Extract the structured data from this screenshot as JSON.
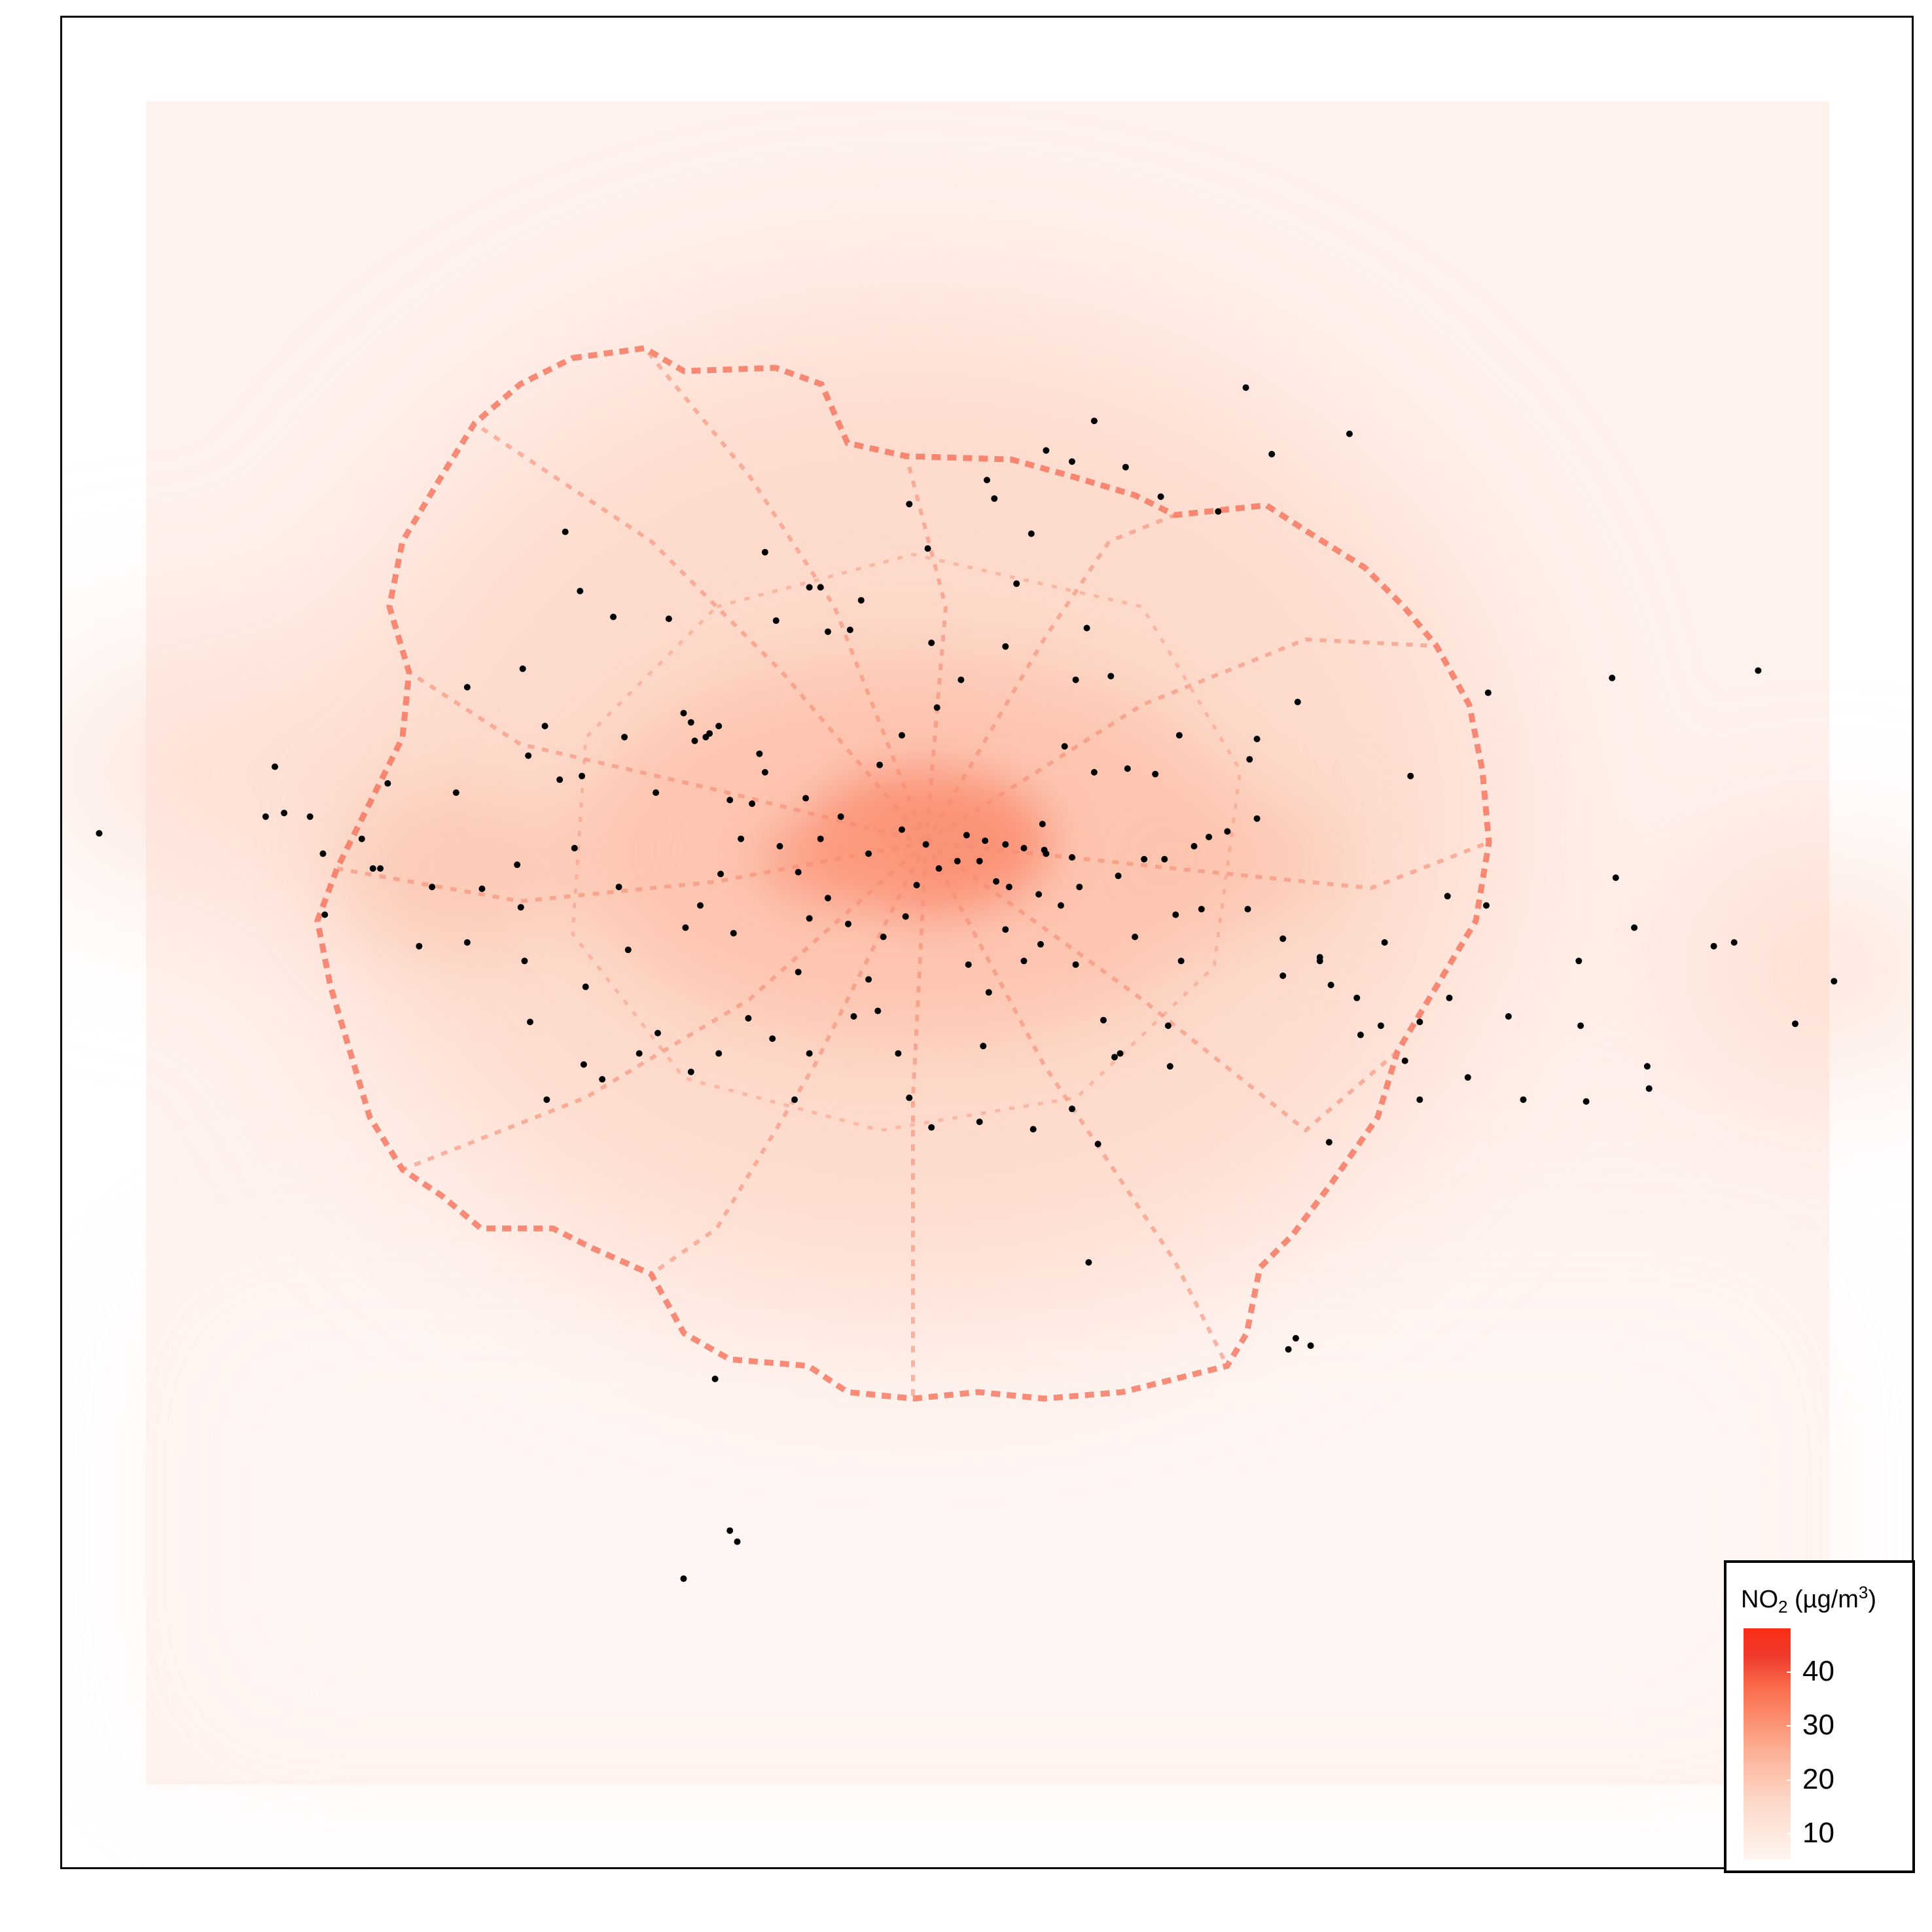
{
  "map": {
    "type": "heatmap",
    "subject": "NO2 concentration surface with monitoring sites",
    "colors": {
      "low": "#fff5f0",
      "mid": "#fca98d",
      "high": "#fb2d16",
      "road": "#f46a52",
      "site": "#000000"
    }
  },
  "legend": {
    "title_main": "NO",
    "title_sub": "2",
    "title_unit": " (µg/m",
    "title_sup": "3",
    "title_end": ")",
    "ticks": [
      {
        "label": "40",
        "value": 40
      },
      {
        "label": "30",
        "value": 30
      },
      {
        "label": "20",
        "value": 20
      },
      {
        "label": "10",
        "value": 10
      }
    ],
    "range": [
      5,
      48
    ],
    "placement": "bottom-right"
  },
  "chart_data": {
    "type": "heatmap",
    "title": "",
    "xlabel": "",
    "ylabel": "",
    "legend_title": "NO2 (µg/m3)",
    "color_scale_range": [
      5,
      48
    ],
    "color_ticks": [
      10,
      20,
      30,
      40
    ],
    "grid": false,
    "legend_placement": "bottom-right",
    "monitoring_sites": [
      [
        0.02,
        0.441
      ],
      [
        0.162,
        0.444
      ],
      [
        0.213,
        0.419
      ],
      [
        0.269,
        0.412
      ],
      [
        0.281,
        0.41
      ],
      [
        0.277,
        0.449
      ],
      [
        0.219,
        0.5
      ],
      [
        0.246,
        0.458
      ],
      [
        0.248,
        0.481
      ],
      [
        0.283,
        0.524
      ],
      [
        0.301,
        0.47
      ],
      [
        0.306,
        0.504
      ],
      [
        0.322,
        0.549
      ],
      [
        0.337,
        0.492
      ],
      [
        0.356,
        0.463
      ],
      [
        0.363,
        0.495
      ],
      [
        0.367,
        0.444
      ],
      [
        0.388,
        0.448
      ],
      [
        0.398,
        0.462
      ],
      [
        0.404,
        0.487
      ],
      [
        0.414,
        0.476
      ],
      [
        0.41,
        0.444
      ],
      [
        0.421,
        0.432
      ],
      [
        0.436,
        0.452
      ],
      [
        0.454,
        0.439
      ],
      [
        0.467,
        0.447
      ],
      [
        0.474,
        0.46
      ],
      [
        0.489,
        0.442
      ],
      [
        0.499,
        0.445
      ],
      [
        0.51,
        0.447
      ],
      [
        0.52,
        0.449
      ],
      [
        0.532,
        0.452
      ],
      [
        0.546,
        0.454
      ],
      [
        0.571,
        0.464
      ],
      [
        0.596,
        0.455
      ],
      [
        0.605,
        0.51
      ],
      [
        0.616,
        0.482
      ],
      [
        0.641,
        0.482
      ],
      [
        0.66,
        0.498
      ],
      [
        0.68,
        0.508
      ],
      [
        0.7,
        0.53
      ],
      [
        0.713,
        0.545
      ],
      [
        0.726,
        0.564
      ],
      [
        0.734,
        0.543
      ],
      [
        0.729,
        0.41
      ],
      [
        0.749,
        0.475
      ],
      [
        0.771,
        0.365
      ],
      [
        0.838,
        0.357
      ],
      [
        0.782,
        0.54
      ],
      [
        0.821,
        0.545
      ],
      [
        0.857,
        0.567
      ],
      [
        0.893,
        0.502
      ],
      [
        0.76,
        0.573
      ],
      [
        0.668,
        0.37
      ],
      [
        0.646,
        0.433
      ],
      [
        0.642,
        0.401
      ],
      [
        0.62,
        0.443
      ],
      [
        0.591,
        0.409
      ],
      [
        0.576,
        0.406
      ],
      [
        0.554,
        0.33
      ],
      [
        0.548,
        0.358
      ],
      [
        0.531,
        0.45
      ],
      [
        0.516,
        0.306
      ],
      [
        0.51,
        0.34
      ],
      [
        0.486,
        0.358
      ],
      [
        0.473,
        0.373
      ],
      [
        0.47,
        0.338
      ],
      [
        0.454,
        0.388
      ],
      [
        0.442,
        0.404
      ],
      [
        0.432,
        0.315
      ],
      [
        0.426,
        0.331
      ],
      [
        0.414,
        0.332
      ],
      [
        0.404,
        0.308
      ],
      [
        0.386,
        0.326
      ],
      [
        0.377,
        0.398
      ],
      [
        0.373,
        0.425
      ],
      [
        0.361,
        0.423
      ],
      [
        0.345,
        0.48
      ],
      [
        0.342,
        0.391
      ],
      [
        0.348,
        0.389
      ],
      [
        0.336,
        0.376
      ],
      [
        0.321,
        0.419
      ],
      [
        0.304,
        0.389
      ],
      [
        0.261,
        0.383
      ],
      [
        0.249,
        0.352
      ],
      [
        0.252,
        0.399
      ],
      [
        0.28,
        0.31
      ],
      [
        0.298,
        0.324
      ],
      [
        0.34,
        0.381
      ],
      [
        0.355,
        0.383
      ],
      [
        0.38,
        0.408
      ],
      [
        0.402,
        0.422
      ],
      [
        0.425,
        0.49
      ],
      [
        0.436,
        0.52
      ],
      [
        0.441,
        0.537
      ],
      [
        0.452,
        0.56
      ],
      [
        0.458,
        0.584
      ],
      [
        0.49,
        0.512
      ],
      [
        0.501,
        0.527
      ],
      [
        0.52,
        0.51
      ],
      [
        0.529,
        0.501
      ],
      [
        0.548,
        0.512
      ],
      [
        0.563,
        0.542
      ],
      [
        0.569,
        0.562
      ],
      [
        0.572,
        0.56
      ],
      [
        0.58,
        0.497
      ],
      [
        0.602,
        0.485
      ],
      [
        0.598,
        0.545
      ],
      [
        0.51,
        0.493
      ],
      [
        0.505,
        0.467
      ],
      [
        0.496,
        0.456
      ],
      [
        0.484,
        0.456
      ],
      [
        0.462,
        0.469
      ],
      [
        0.456,
        0.486
      ],
      [
        0.444,
        0.497
      ],
      [
        0.428,
        0.54
      ],
      [
        0.404,
        0.56
      ],
      [
        0.396,
        0.585
      ],
      [
        0.384,
        0.552
      ],
      [
        0.371,
        0.541
      ],
      [
        0.355,
        0.56
      ],
      [
        0.34,
        0.57
      ],
      [
        0.312,
        0.56
      ],
      [
        0.292,
        0.574
      ],
      [
        0.282,
        0.566
      ],
      [
        0.262,
        0.585
      ],
      [
        0.253,
        0.543
      ],
      [
        0.25,
        0.51
      ],
      [
        0.227,
        0.471
      ],
      [
        0.2,
        0.47
      ],
      [
        0.193,
        0.502
      ],
      [
        0.168,
        0.46
      ],
      [
        0.172,
        0.46
      ],
      [
        0.11,
        0.432
      ],
      [
        0.12,
        0.43
      ],
      [
        0.134,
        0.432
      ],
      [
        0.141,
        0.452
      ],
      [
        0.115,
        0.405
      ],
      [
        0.142,
        0.485
      ],
      [
        0.176,
        0.414
      ],
      [
        0.219,
        0.362
      ],
      [
        0.272,
        0.278
      ],
      [
        0.328,
        0.325
      ],
      [
        0.35,
        0.387
      ],
      [
        0.38,
        0.289
      ],
      [
        0.41,
        0.308
      ],
      [
        0.458,
        0.263
      ],
      [
        0.468,
        0.287
      ],
      [
        0.5,
        0.25
      ],
      [
        0.504,
        0.26
      ],
      [
        0.524,
        0.279
      ],
      [
        0.532,
        0.234
      ],
      [
        0.546,
        0.24
      ],
      [
        0.558,
        0.218
      ],
      [
        0.575,
        0.243
      ],
      [
        0.594,
        0.259
      ],
      [
        0.625,
        0.267
      ],
      [
        0.64,
        0.2
      ],
      [
        0.654,
        0.236
      ],
      [
        0.696,
        0.225
      ],
      [
        0.646,
        0.39
      ],
      [
        0.604,
        0.388
      ],
      [
        0.567,
        0.356
      ],
      [
        0.558,
        0.408
      ],
      [
        0.542,
        0.394
      ],
      [
        0.53,
        0.436
      ],
      [
        0.599,
        0.567
      ],
      [
        0.685,
        0.608
      ],
      [
        0.734,
        0.585
      ],
      [
        0.79,
        0.585
      ],
      [
        0.85,
        0.492
      ],
      [
        0.904,
        0.5
      ],
      [
        0.917,
        0.353
      ],
      [
        0.958,
        0.521
      ],
      [
        0.937,
        0.544
      ],
      [
        0.824,
        0.586
      ],
      [
        0.75,
        0.53
      ],
      [
        0.686,
        0.523
      ],
      [
        0.66,
        0.518
      ],
      [
        0.546,
        0.59
      ],
      [
        0.56,
        0.609
      ],
      [
        0.398,
        0.516
      ],
      [
        0.498,
        0.556
      ],
      [
        0.47,
        0.6
      ],
      [
        0.496,
        0.597
      ],
      [
        0.525,
        0.601
      ],
      [
        0.555,
        0.673
      ],
      [
        0.353,
        0.736
      ],
      [
        0.361,
        0.818
      ],
      [
        0.365,
        0.824
      ],
      [
        0.336,
        0.844
      ],
      [
        0.667,
        0.714
      ],
      [
        0.663,
        0.72
      ],
      [
        0.675,
        0.718
      ],
      [
        0.858,
        0.579
      ],
      [
        0.68,
        0.51
      ],
      [
        0.702,
        0.55
      ],
      [
        0.715,
        0.5
      ],
      [
        0.77,
        0.48
      ],
      [
        0.82,
        0.51
      ],
      [
        0.84,
        0.465
      ],
      [
        0.63,
        0.44
      ],
      [
        0.612,
        0.448
      ],
      [
        0.585,
        0.455
      ],
      [
        0.55,
        0.47
      ],
      [
        0.54,
        0.48
      ],
      [
        0.528,
        0.474
      ],
      [
        0.512,
        0.47
      ]
    ]
  }
}
